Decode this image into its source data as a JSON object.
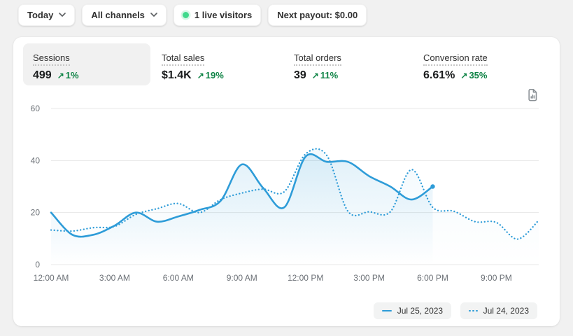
{
  "topbar": {
    "date_range": "Today",
    "channels": "All channels",
    "live_visitors": "1 live visitors",
    "next_payout": "Next payout: $0.00"
  },
  "icons": {
    "trend_up": "↗"
  },
  "metrics": [
    {
      "label": "Sessions",
      "value": "499",
      "change": "1%",
      "selected": true
    },
    {
      "label": "Total sales",
      "value": "$1.4K",
      "change": "19%",
      "selected": false
    },
    {
      "label": "Total orders",
      "value": "39",
      "change": "11%",
      "selected": false
    },
    {
      "label": "Conversion rate",
      "value": "6.61%",
      "change": "35%",
      "selected": false
    }
  ],
  "chart_data": {
    "type": "line",
    "title": "",
    "x_axis": {
      "tick_labels": [
        "12:00 AM",
        "3:00 AM",
        "6:00 AM",
        "9:00 AM",
        "12:00 PM",
        "3:00 PM",
        "6:00 PM",
        "9:00 PM"
      ],
      "tick_hours": [
        0,
        3,
        6,
        9,
        12,
        15,
        18,
        21
      ],
      "hours_span": 23
    },
    "y_axis": {
      "ticks": [
        0,
        20,
        40,
        60
      ],
      "max": 60,
      "grid": true
    },
    "legend_position": "bottom-right",
    "series": [
      {
        "name": "Jul 25, 2023",
        "style": "solid",
        "color": "#2e9cd8",
        "start_hour": 0,
        "values": [
          20,
          11.5,
          11.5,
          15,
          20,
          16.5,
          18.5,
          21,
          24.5,
          38.5,
          29.5,
          22,
          41.5,
          39.5,
          39.5,
          34,
          30,
          25,
          30
        ]
      },
      {
        "name": "Jul 24, 2023",
        "style": "dotted",
        "color": "#2e9cd8",
        "start_hour": 0,
        "values": [
          13.3,
          12.9,
          14.2,
          14.7,
          19.3,
          21.5,
          23.5,
          20,
          25,
          27.5,
          29,
          28,
          42.5,
          42,
          20.5,
          20.3,
          20.3,
          36.5,
          22,
          20.5,
          16.5,
          16.2,
          9.8,
          17
        ]
      }
    ]
  },
  "colors": {
    "accent_blue": "#2e9cd8",
    "success_green": "#0e8345",
    "live_green": "#3ed98b",
    "page_bg": "#f1f1f1",
    "card_bg": "#ffffff",
    "axis_text": "#6b7076",
    "gridline": "#e7e7e7"
  }
}
